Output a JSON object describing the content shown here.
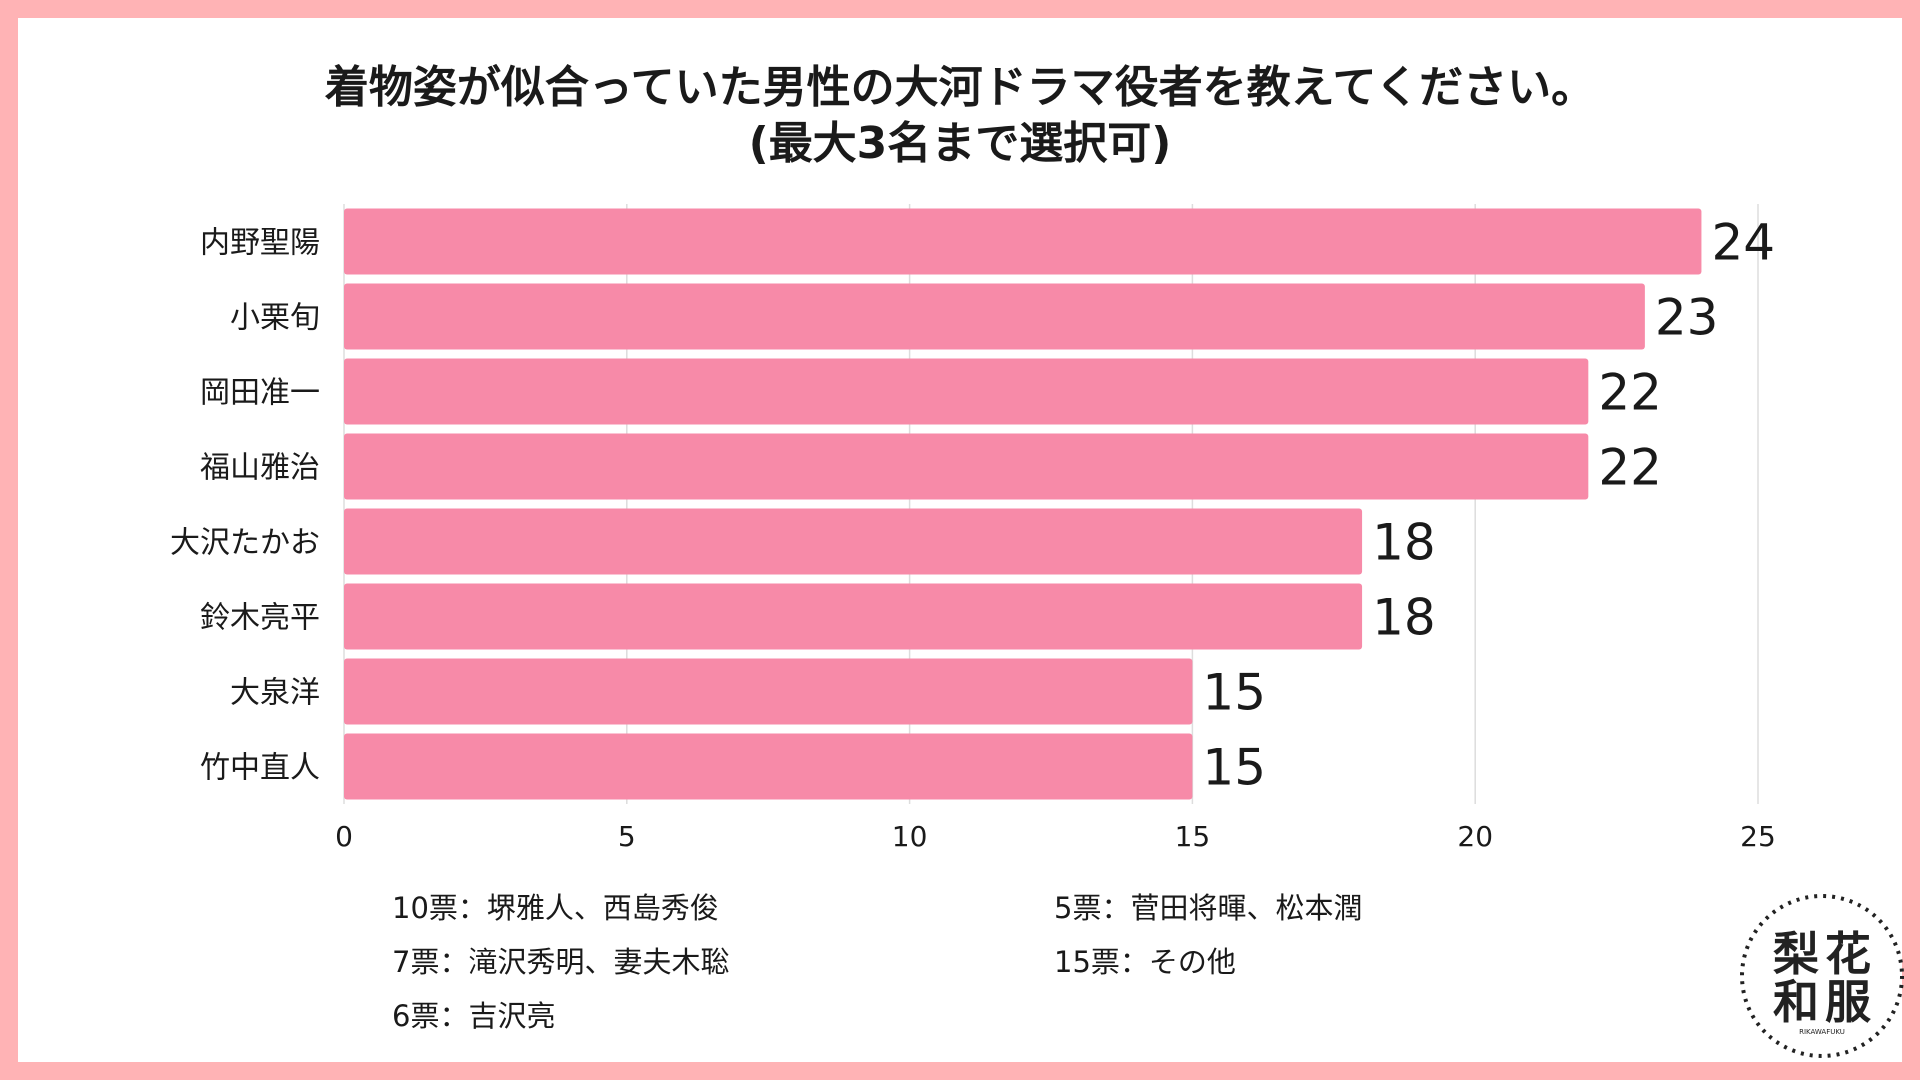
{
  "title": {
    "line1": "着物姿が似合っていた男性の大河ドラマ役者を教えてください。",
    "line2": "(最大3名まで選択可)"
  },
  "chart_data": {
    "type": "bar",
    "orientation": "horizontal",
    "categories": [
      "内野聖陽",
      "小栗旬",
      "岡田准一",
      "福山雅治",
      "大沢たかお",
      "鈴木亮平",
      "大泉洋",
      "竹中直人"
    ],
    "values": [
      24,
      23,
      22,
      22,
      18,
      18,
      15,
      15
    ],
    "xlim": [
      0,
      25
    ],
    "xticks": [
      0,
      5,
      10,
      15,
      20,
      25
    ],
    "grid": true,
    "bar_color": "#f78aa8"
  },
  "notes": {
    "left": [
      "10票：堺雅人、西島秀俊",
      "7票：滝沢秀明、妻夫木聡",
      "6票：吉沢亮"
    ],
    "right": [
      "5票：菅田将暉、松本潤",
      "15票：その他"
    ]
  },
  "logo": {
    "chars": [
      "梨",
      "花",
      "和",
      "服"
    ],
    "sub": "RIKAWAFUKU"
  },
  "colors": {
    "frame": "#ffb3b5",
    "bar": "#f78aa8",
    "grid": "#dddddd"
  }
}
